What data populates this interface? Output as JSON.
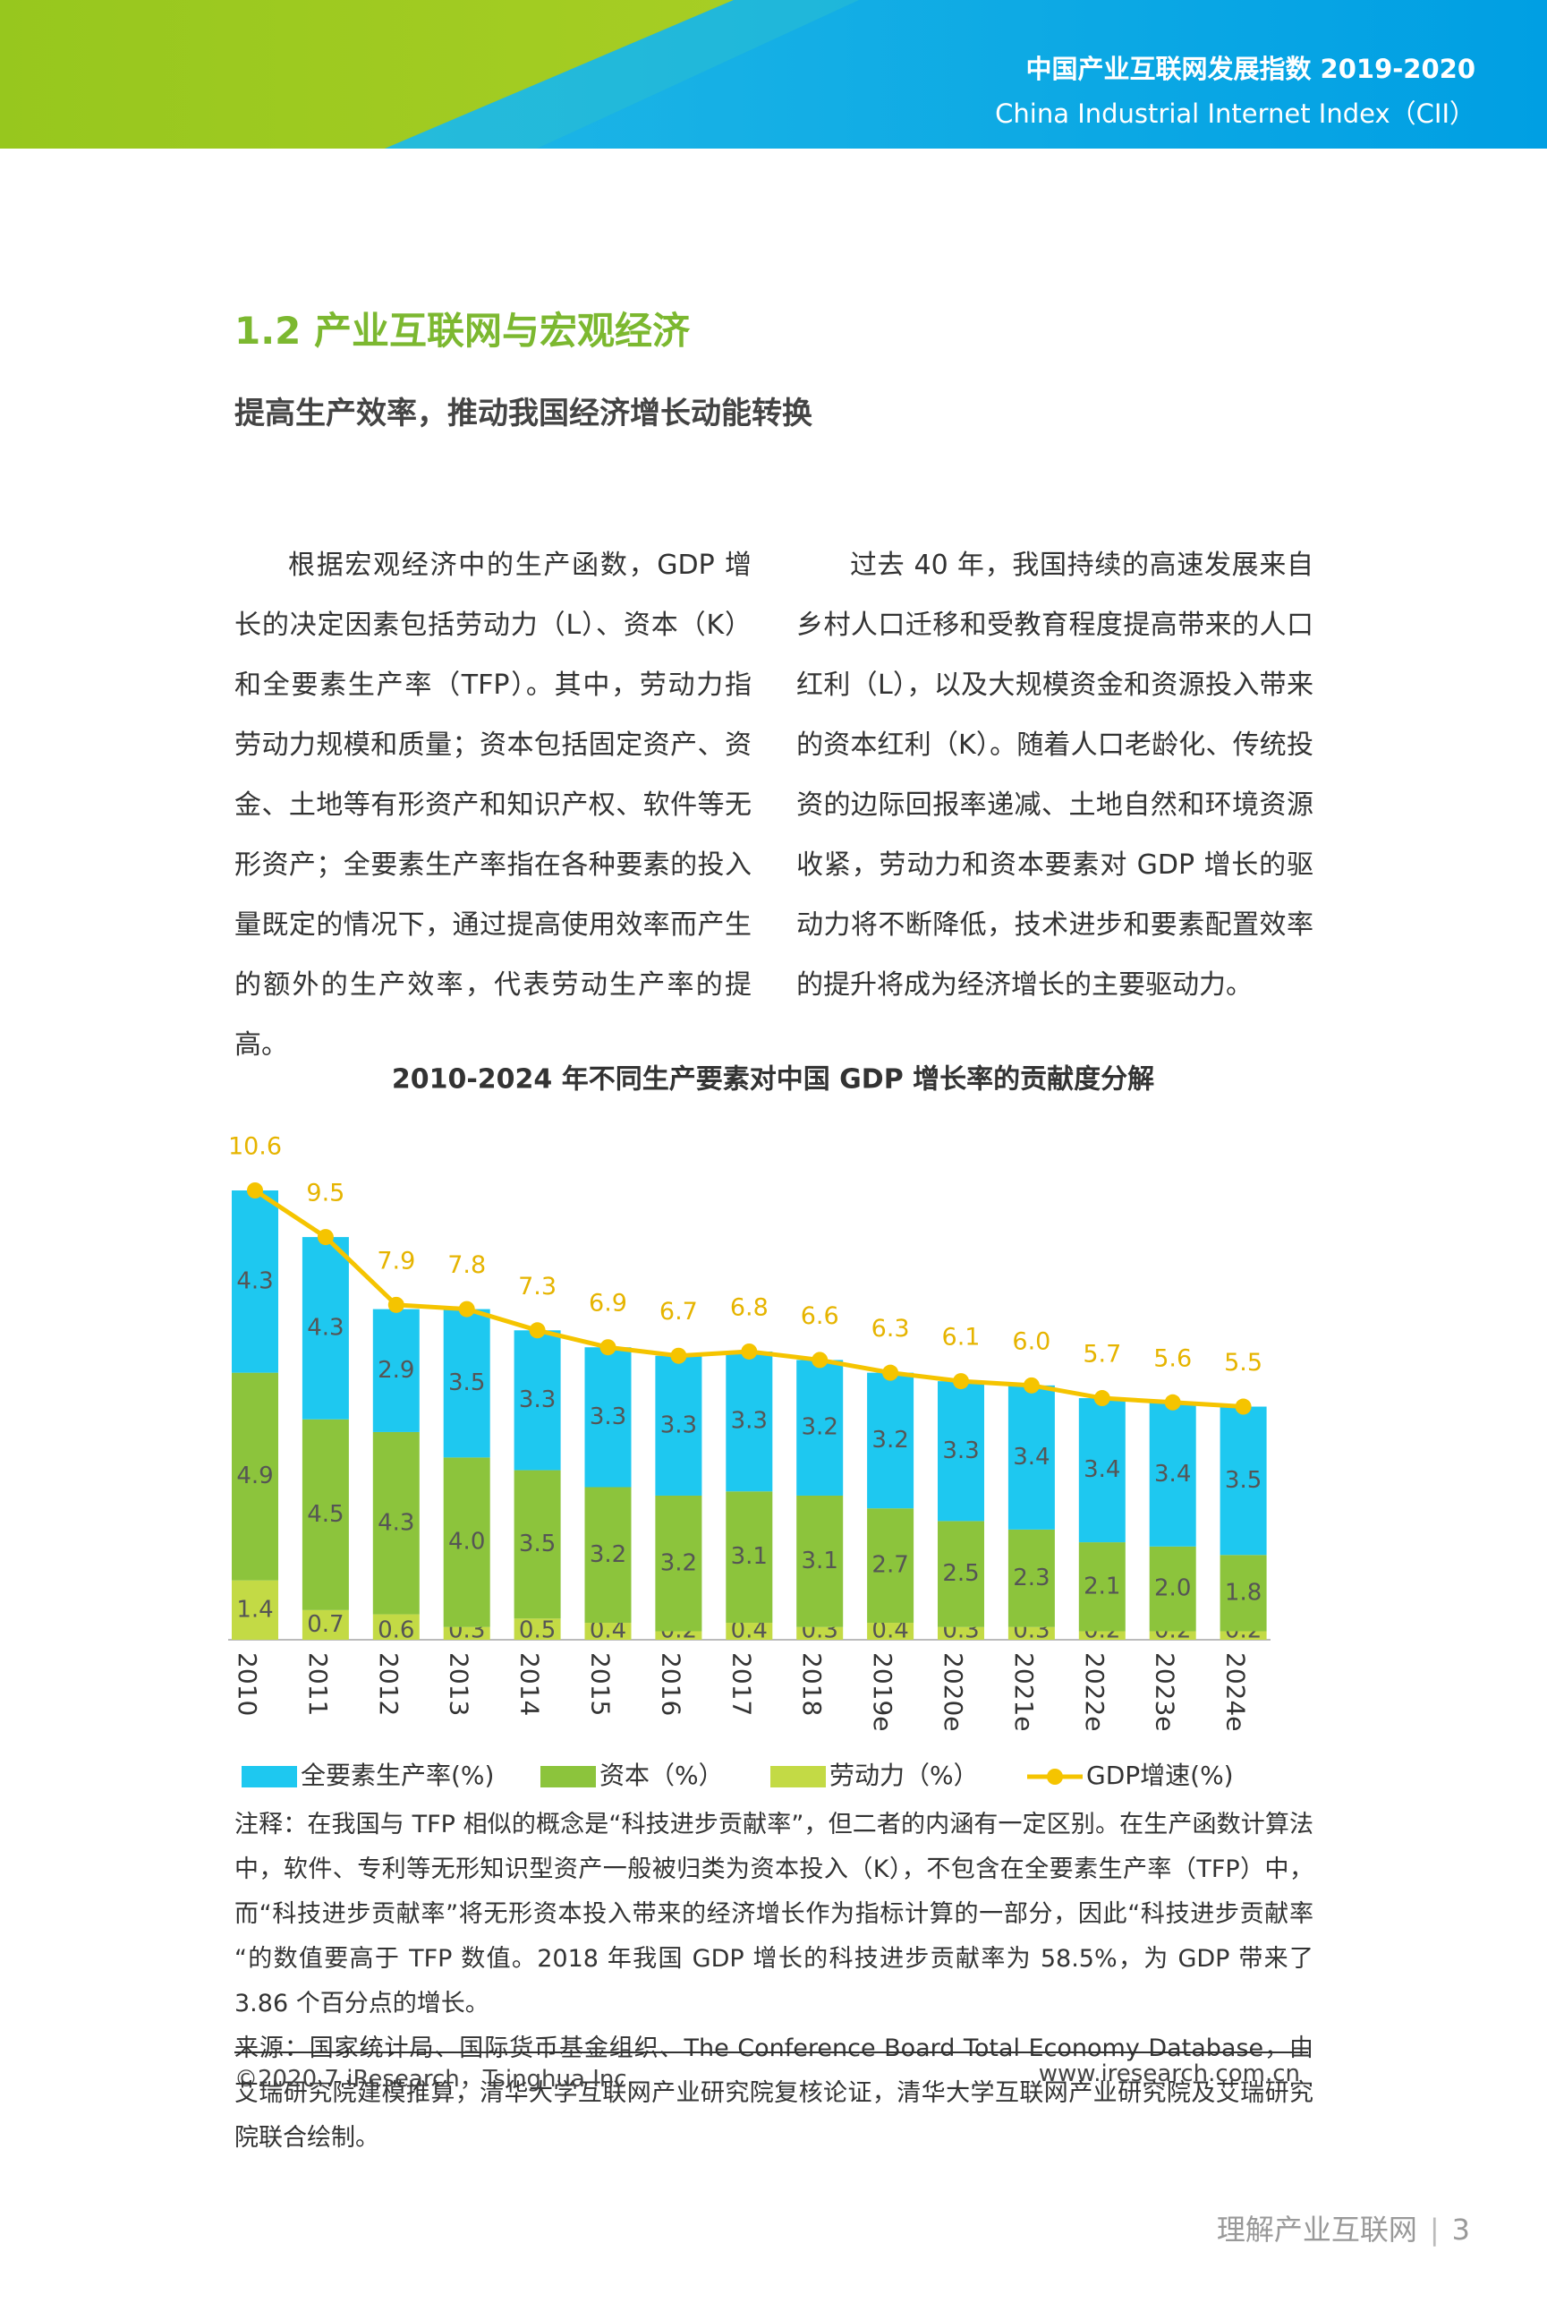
{
  "header": {
    "title_cn": "中国产业互联网发展指数 2019-2020",
    "title_en": "China Industrial Internet Index（CII）"
  },
  "section": {
    "heading": "1.2  产业互联网与宏观经济",
    "subheading": "提高生产效率，推动我国经济增长动能转换"
  },
  "paragraphs": [
    "根据宏观经济中的生产函数，GDP 增长的决定因素包括劳动力（L）、资本（K）和全要素生产率（TFP）。其中，劳动力指劳动力规模和质量；资本包括固定资产、资金、土地等有形资产和知识产权、软件等无形资产；全要素生产率指在各种要素的投入量既定的情况下，通过提高使用效率而产生的额外的生产效率，代表劳动生产率的提高。",
    "过去 40 年，我国持续的高速发展来自乡村人口迁移和受教育程度提高带来的人口红利（L），以及大规模资金和资源投入带来的资本红利（K）。随着人口老龄化、传统投资的边际回报率递减、土地自然和环境资源收紧，劳动力和资本要素对 GDP 增长的驱动力将不断降低，技术进步和要素配置效率的提升将成为经济增长的主要驱动力。"
  ],
  "chart_data": {
    "type": "stacked-bar-line",
    "title": "2010-2024 年不同生产要素对中国 GDP 增长率的贡献度分解",
    "categories": [
      "2010",
      "2011",
      "2012",
      "2013",
      "2014",
      "2015",
      "2016",
      "2017",
      "2018",
      "2019e",
      "2020e",
      "2021e",
      "2022e",
      "2023e",
      "2024e"
    ],
    "series": [
      {
        "name": "全要素生产率(%)",
        "kind": "bar",
        "color": "#1ec8f0",
        "values": [
          4.3,
          4.3,
          2.9,
          3.5,
          3.3,
          3.3,
          3.3,
          3.3,
          3.2,
          3.2,
          3.3,
          3.4,
          3.4,
          3.4,
          3.5
        ]
      },
      {
        "name": "资本（%）",
        "kind": "bar",
        "color": "#8cc43c",
        "values": [
          4.9,
          4.5,
          4.3,
          4.0,
          3.5,
          3.2,
          3.2,
          3.1,
          3.1,
          2.7,
          2.5,
          2.3,
          2.1,
          2.0,
          1.8
        ],
        "value_labels": [
          "4.9",
          "4.5",
          "4.3",
          "4.0",
          "3.5",
          "3.2",
          "3.2",
          "3.1",
          "3.1",
          "2.7",
          "2.5",
          "2.3",
          "2.1",
          "2.0",
          "1.8"
        ]
      },
      {
        "name": "劳动力（%）",
        "kind": "bar",
        "color": "#c3da45",
        "values": [
          1.4,
          0.7,
          0.6,
          0.3,
          0.5,
          0.4,
          0.2,
          0.4,
          0.3,
          0.4,
          0.3,
          0.3,
          0.2,
          0.2,
          0.2
        ]
      },
      {
        "name": "GDP增速(%)",
        "kind": "line",
        "color": "#f5c400",
        "values": [
          10.6,
          9.5,
          7.9,
          7.8,
          7.3,
          6.9,
          6.7,
          6.8,
          6.6,
          6.3,
          6.1,
          6.0,
          5.7,
          5.6,
          5.5
        ],
        "value_labels": [
          "10.6",
          "9.5",
          "7.9",
          "7.8",
          "7.3",
          "6.9",
          "6.7",
          "6.8",
          "6.6",
          "6.3",
          "6.1",
          "6.0",
          "5.7",
          "5.6",
          "5.5"
        ]
      }
    ],
    "stacked": true,
    "legend": "bottom"
  },
  "notes": {
    "note": "注释：在我国与 TFP 相似的概念是“科技进步贡献率”，但二者的内涵有一定区别。在生产函数计算法中，软件、专利等无形知识型资产一般被归类为资本投入（K），不包含在全要素生产率（TFP）中，而“科技进步贡献率”将无形资本投入带来的经济增长作为指标计算的一部分，因此“科技进步贡献率“的数值要高于 TFP 数值。2018 年我国 GDP 增长的科技进步贡献率为 58.5%，为 GDP 带来了 3.86 个百分点的增长。",
    "source": "来源：国家统计局、国际货币基金组织、The Conference Board Total Economy Database，由艾瑞研究院建模推算，清华大学互联网产业研究院复核论证，清华大学互联网产业研究院及艾瑞研究院联合绘制。"
  },
  "footer": {
    "copyright": "©2020.7 iResearch，Tsinghua Inc.",
    "url": "www.iresearch.com.cn",
    "page_label": "理解产业互联网",
    "page_number": "3"
  }
}
